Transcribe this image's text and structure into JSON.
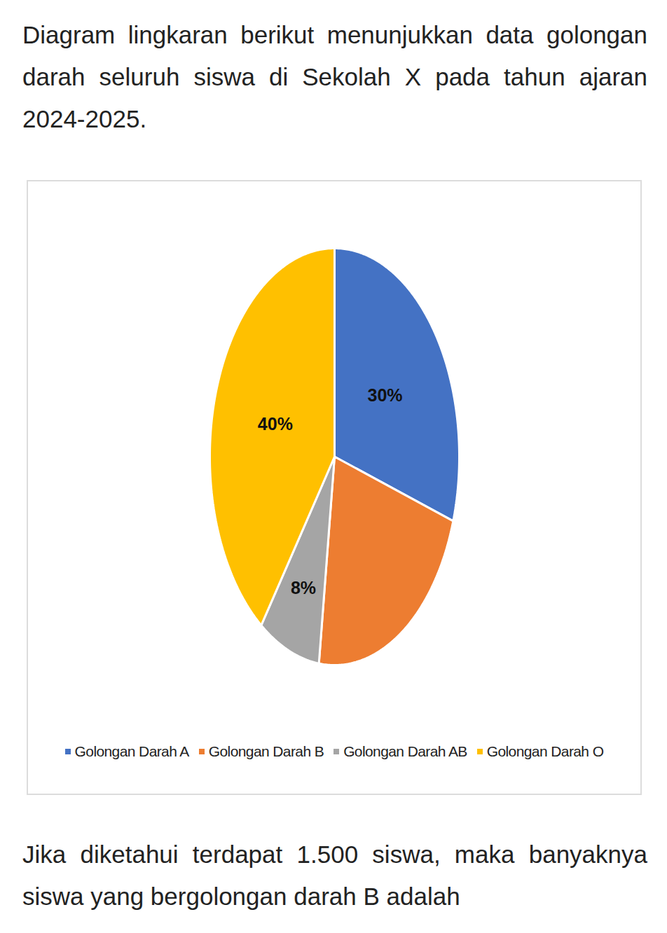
{
  "chart_data": {
    "type": "pie",
    "title": "Diagram lingkaran berikut menunjukkan data golongan darah seluruh siswa di Sekolah X pada tahun ajaran 2024-2025.",
    "categories": [
      "Golongan Darah A",
      "Golongan Darah B",
      "Golongan Darah AB",
      "Golongan Darah O"
    ],
    "values": [
      30,
      22,
      8,
      40
    ],
    "value_labels": [
      "30%",
      null,
      "8%",
      "40%"
    ],
    "colors": [
      "#4472c4",
      "#ed7d31",
      "#a5a5a5",
      "#ffc000"
    ],
    "data_labels": true,
    "legend": "bottom",
    "annotations": [
      "Jika diketahui terdapat 1.500 siswa, maka banyaknya siswa yang bergolongan darah B adalah"
    ]
  }
}
